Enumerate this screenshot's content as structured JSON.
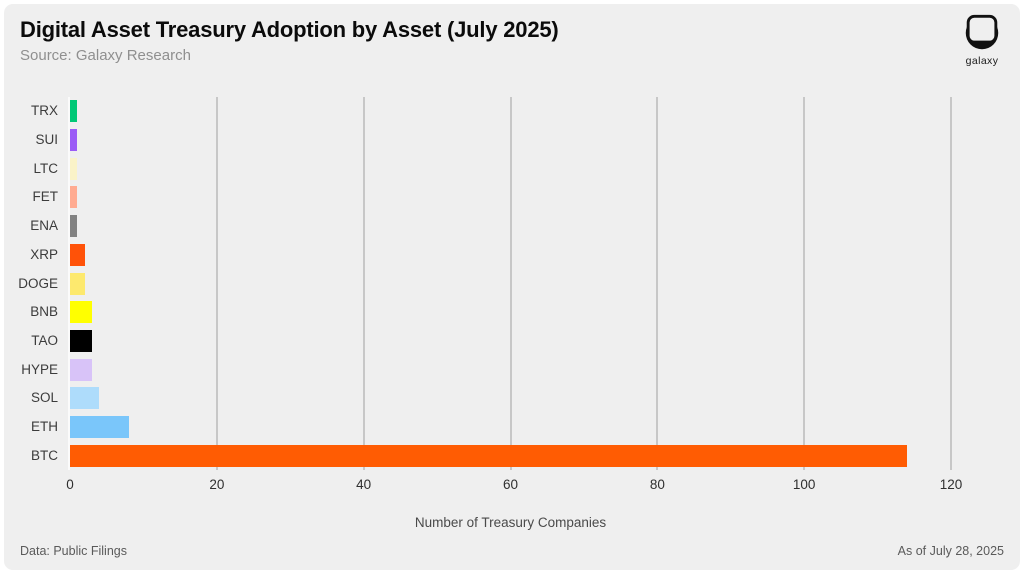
{
  "header": {
    "title": "Digital Asset Treasury Adoption by Asset (July 2025)",
    "subtitle": "Source: Galaxy Research",
    "logo_text": "galaxy"
  },
  "chart_data": {
    "type": "bar",
    "orientation": "horizontal",
    "title": "Digital Asset Treasury Adoption by Asset (July 2025)",
    "xlabel": "Number of Treasury Companies",
    "xlim": [
      0,
      120
    ],
    "xticks": [
      0,
      20,
      40,
      60,
      80,
      100,
      120
    ],
    "grid": true,
    "categories": [
      "TRX",
      "SUI",
      "LTC",
      "FET",
      "ENA",
      "XRP",
      "DOGE",
      "BNB",
      "TAO",
      "HYPE",
      "SOL",
      "ETH",
      "BTC"
    ],
    "values": [
      1,
      1,
      1,
      1,
      1,
      2,
      2,
      3,
      3,
      3,
      4,
      8,
      114
    ],
    "colors": [
      "#00C876",
      "#9B5CF6",
      "#FAF3C8",
      "#FFAB91",
      "#828282",
      "#FF5208",
      "#FDE96E",
      "#FFFF00",
      "#000000",
      "#D8C3F8",
      "#AEDCFB",
      "#7AC6FA",
      "#FF5C03"
    ]
  },
  "colors": {
    "background": "#efefef",
    "gridline": "#c7c7c7",
    "accent": "#FF5C03"
  },
  "footer": {
    "left": "Data: Public Filings",
    "right": "As of July 28, 2025"
  }
}
